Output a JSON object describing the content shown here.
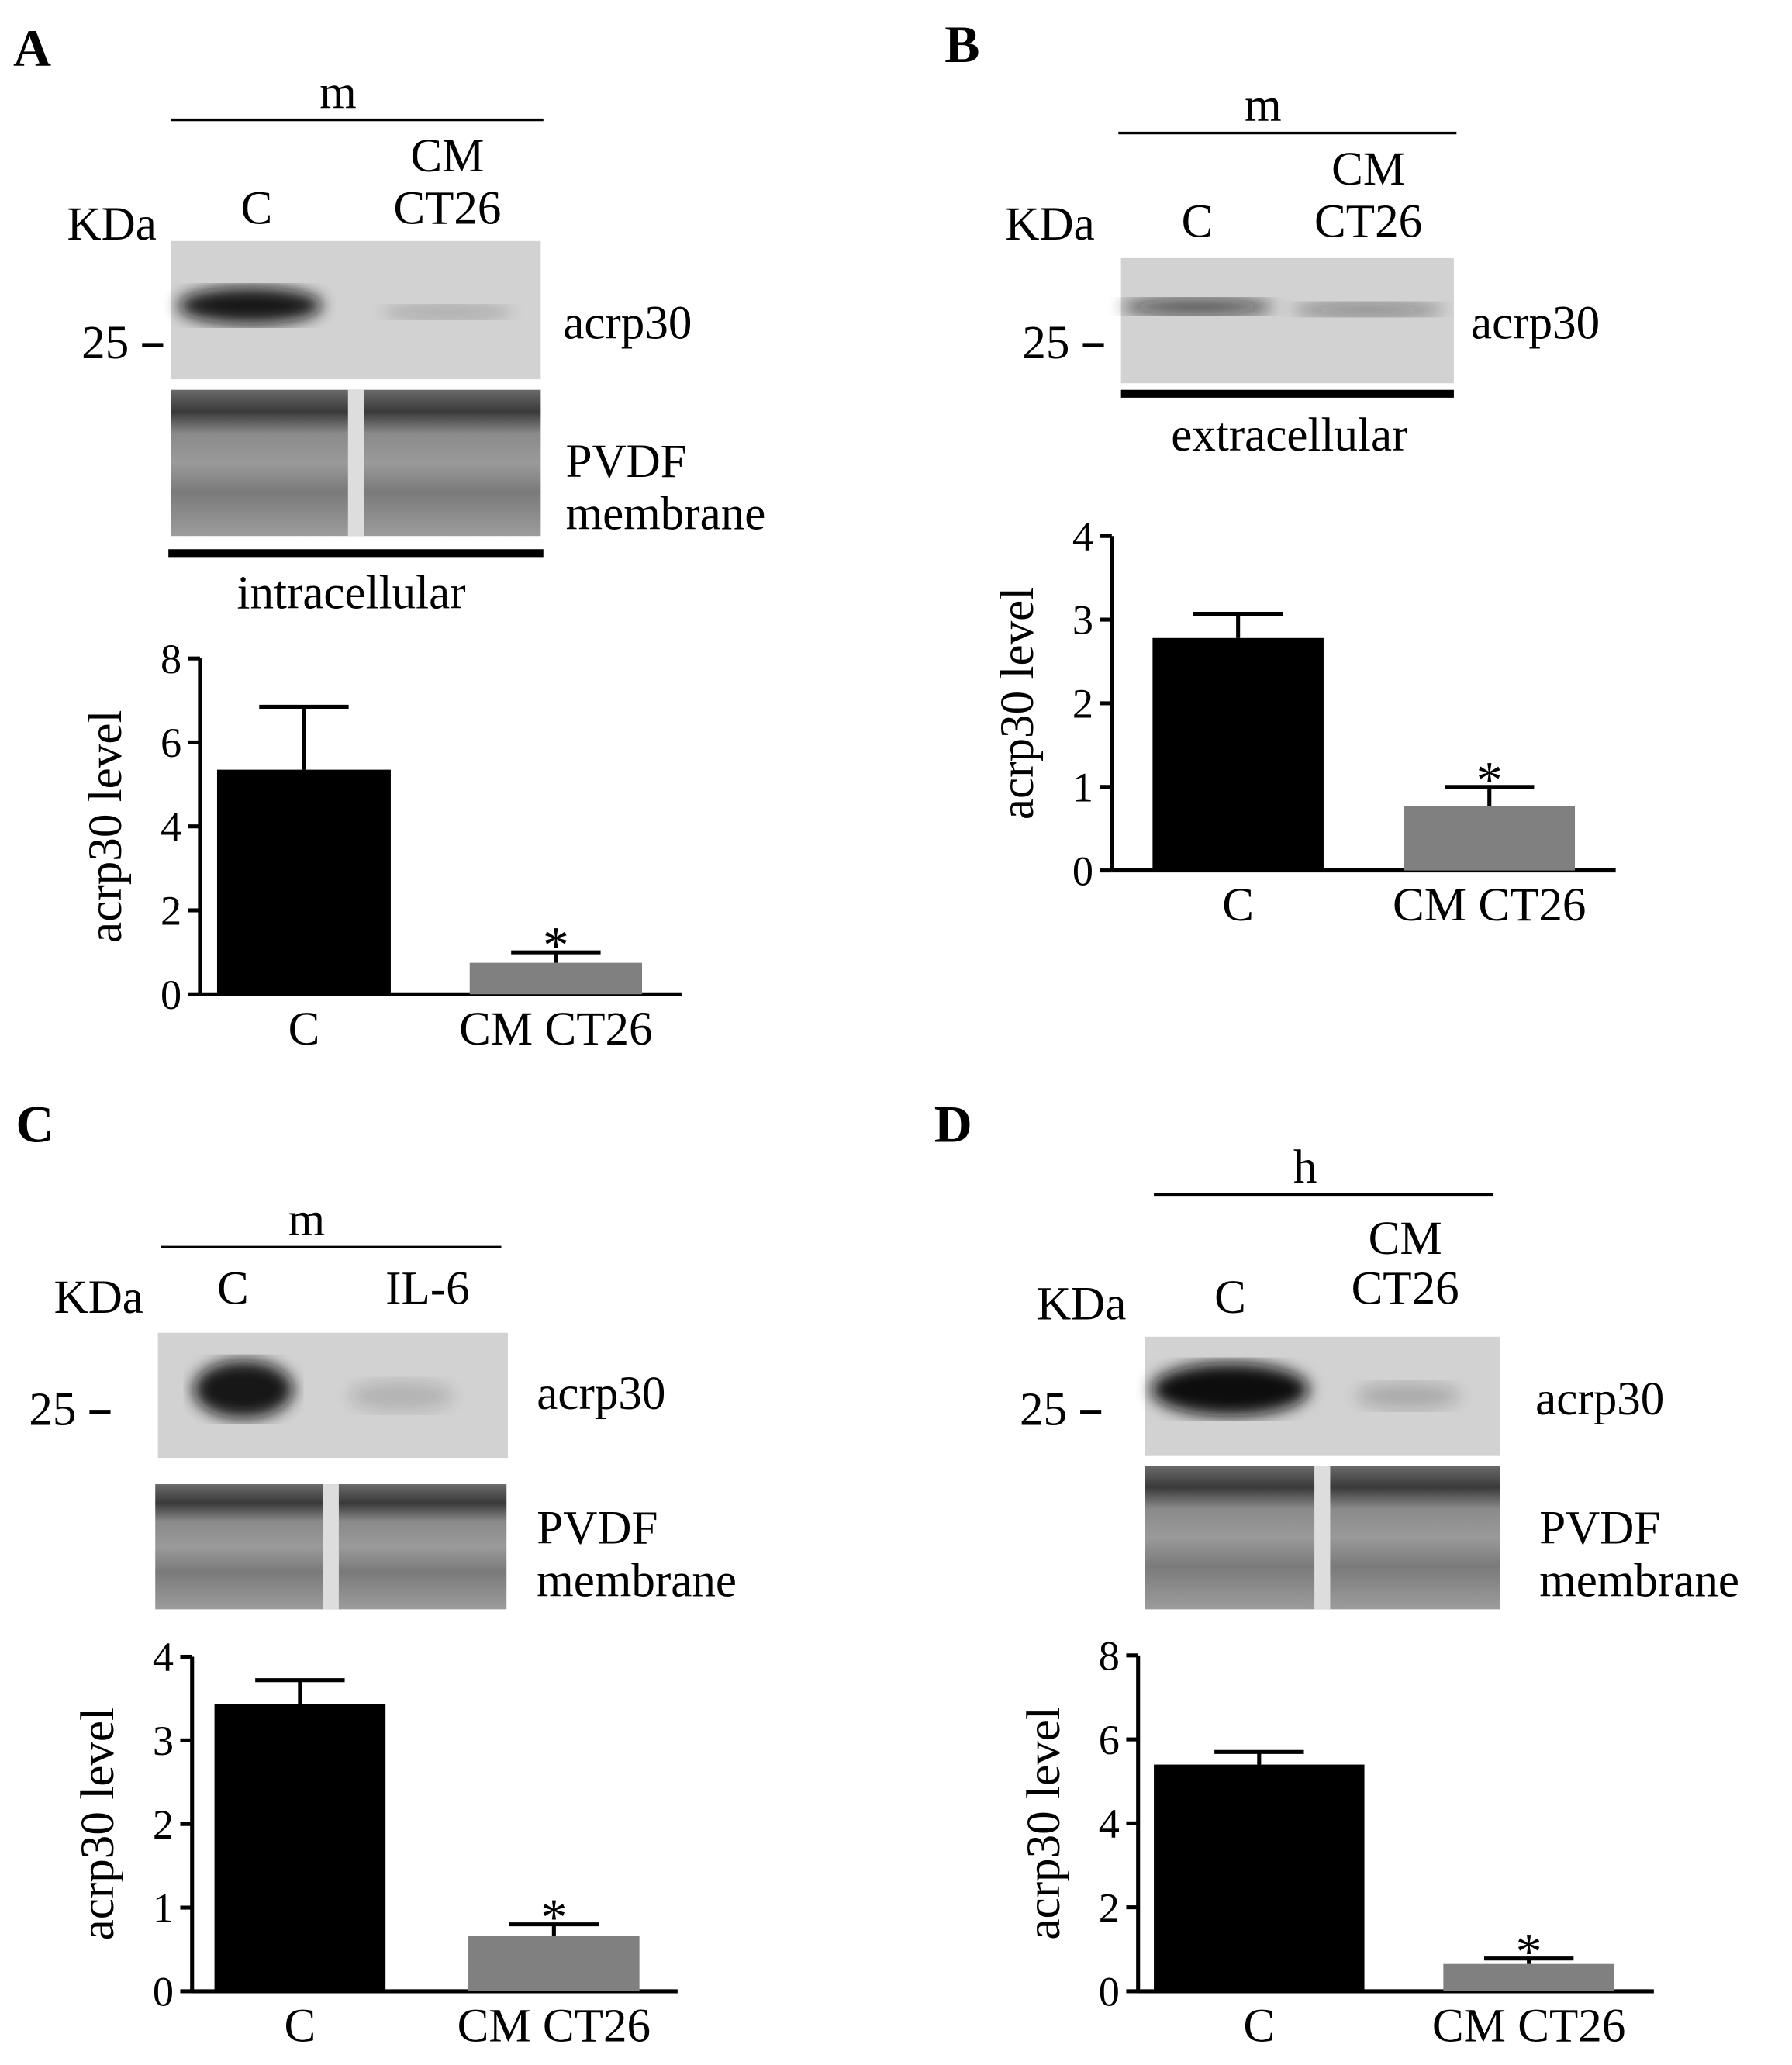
{
  "panels": [
    {
      "letter": "A",
      "blot": {
        "group": "m",
        "lanes": [
          [
            "C"
          ],
          [
            "CM",
            "CT26"
          ]
        ],
        "kda": "KDa",
        "marker": "25",
        "protein": "acrp30",
        "loading": [
          "PVDF",
          "membrane"
        ],
        "fraction": "intracellular"
      }
    },
    {
      "letter": "B",
      "blot": {
        "group": "m",
        "lanes": [
          [
            "C"
          ],
          [
            "CM",
            "CT26"
          ]
        ],
        "kda": "KDa",
        "marker": "25",
        "protein": "acrp30",
        "fraction": "extracellular"
      }
    },
    {
      "letter": "C",
      "blot": {
        "group": "m",
        "lanes": [
          [
            "C"
          ],
          [
            "IL-6"
          ]
        ],
        "kda": "KDa",
        "marker": "25",
        "protein": "acrp30",
        "loading": [
          "PVDF",
          "membrane"
        ]
      }
    },
    {
      "letter": "D",
      "blot": {
        "group": "h",
        "lanes": [
          [
            "C"
          ],
          [
            "CM",
            "CT26"
          ]
        ],
        "kda": "KDa",
        "marker": "25",
        "protein": "acrp30",
        "loading": [
          "PVDF",
          "membrane"
        ]
      }
    }
  ],
  "chart_data": [
    {
      "type": "bar",
      "y_label": "acrp30 level",
      "categories": [
        "C",
        "CM CT26"
      ],
      "values": [
        5.35,
        0.75
      ],
      "errors": [
        1.5,
        0.25
      ],
      "colors": [
        "#000000",
        "#808080"
      ],
      "annotation": "*",
      "ylim": [
        0,
        8
      ],
      "yticks": [
        0,
        2,
        4,
        6,
        8
      ]
    },
    {
      "type": "bar",
      "y_label": "acrp30 level",
      "categories": [
        "C",
        "CM CT26"
      ],
      "values": [
        2.78,
        0.77
      ],
      "errors": [
        0.29,
        0.23
      ],
      "colors": [
        "#000000",
        "#808080"
      ],
      "annotation": "*",
      "ylim": [
        0,
        4
      ],
      "yticks": [
        0,
        1,
        2,
        3,
        4
      ]
    },
    {
      "type": "bar",
      "y_label": "acrp30 level",
      "categories": [
        "C",
        "CM CT26"
      ],
      "values": [
        3.43,
        0.66
      ],
      "errors": [
        0.29,
        0.14
      ],
      "colors": [
        "#000000",
        "#808080"
      ],
      "annotation": "*",
      "ylim": [
        0,
        4
      ],
      "yticks": [
        0,
        1,
        2,
        3,
        4
      ]
    },
    {
      "type": "bar",
      "y_label": "acrp30 level",
      "categories": [
        "C",
        "CM CT26"
      ],
      "values": [
        5.4,
        0.65
      ],
      "errors": [
        0.3,
        0.13
      ],
      "colors": [
        "#000000",
        "#808080"
      ],
      "annotation": "*",
      "ylim": [
        0,
        8
      ],
      "yticks": [
        0,
        2,
        4,
        6,
        8
      ]
    }
  ]
}
